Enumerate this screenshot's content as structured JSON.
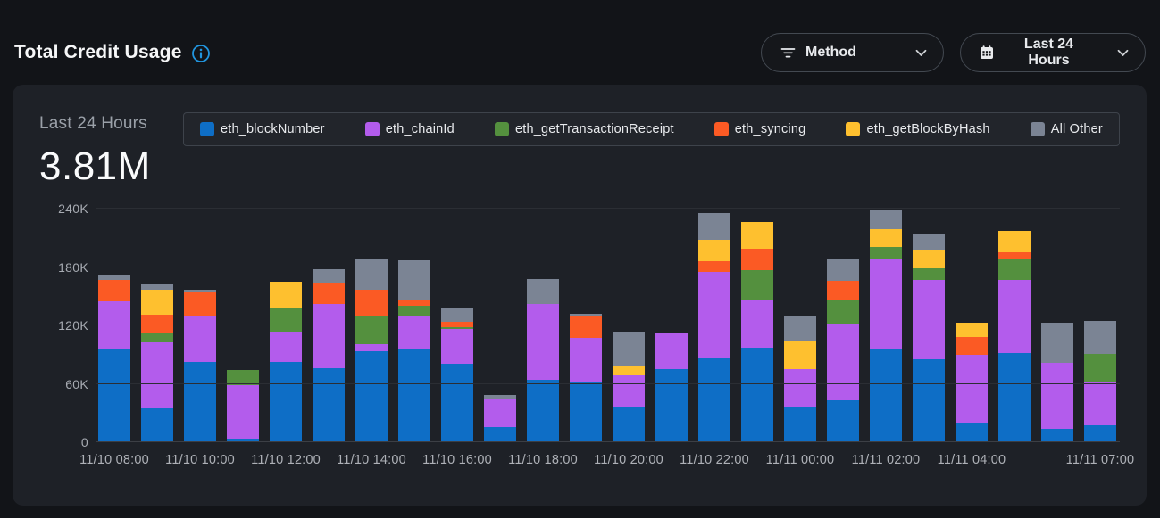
{
  "header": {
    "title": "Total Credit Usage",
    "filters": [
      {
        "label": "Method",
        "icon": "filter-icon"
      },
      {
        "label": "Last 24 Hours",
        "icon": "calendar-icon"
      }
    ]
  },
  "card": {
    "period_label": "Last 24 Hours",
    "total": "3.81M",
    "legend": [
      {
        "label": "eth_blockNumber",
        "color": "#0e6ec6"
      },
      {
        "label": "eth_chainId",
        "color": "#b35cec"
      },
      {
        "label": "eth_getTransactionReceipt",
        "color": "#54903e"
      },
      {
        "label": "eth_syncing",
        "color": "#fb5a24"
      },
      {
        "label": "eth_getBlockByHash",
        "color": "#fec02f"
      },
      {
        "label": "All Other",
        "color": "#7b8494"
      }
    ]
  },
  "colors": {
    "page_bg": "#121418",
    "card_bg": "#1e2127",
    "accent_info": "#2196e0",
    "grid": "#2b2e34",
    "baseline": "#3c3f45"
  },
  "chart_data": {
    "type": "bar",
    "stacked": true,
    "unit": "thousands of credits",
    "ylim": [
      0,
      240
    ],
    "grid": true,
    "legend_position": "top",
    "yticks": [
      {
        "label": "0",
        "value": 0
      },
      {
        "label": "60K",
        "value": 60
      },
      {
        "label": "120K",
        "value": 120
      },
      {
        "label": "180K",
        "value": 180
      },
      {
        "label": "240K",
        "value": 240
      }
    ],
    "categories": [
      "11/10 08:00",
      "11/10 09:00",
      "11/10 10:00",
      "11/10 11:00",
      "11/10 12:00",
      "11/10 13:00",
      "11/10 14:00",
      "11/10 15:00",
      "11/10 16:00",
      "11/10 17:00",
      "11/10 18:00",
      "11/10 19:00",
      "11/10 20:00",
      "11/10 21:00",
      "11/10 22:00",
      "11/10 23:00",
      "11/11 00:00",
      "11/11 01:00",
      "11/11 02:00",
      "11/11 03:00",
      "11/11 04:00",
      "11/11 05:00",
      "11/11 06:00",
      "11/11 07:00"
    ],
    "series": [
      {
        "name": "eth_blockNumber",
        "color": "#0e6ec6",
        "values": [
          96,
          35,
          82,
          4,
          82,
          76,
          93,
          96,
          81,
          16,
          64,
          61,
          37,
          75,
          86,
          97,
          36,
          43,
          95,
          85,
          20,
          92,
          14,
          17
        ]
      },
      {
        "name": "eth_chainId",
        "color": "#b35cec",
        "values": [
          49,
          68,
          48,
          55,
          32,
          66,
          8,
          34,
          35,
          28,
          78,
          46,
          32,
          38,
          89,
          50,
          39,
          79,
          94,
          82,
          70,
          75,
          68,
          45
        ]
      },
      {
        "name": "eth_getTransactionReceipt",
        "color": "#54903e",
        "values": [
          0,
          9,
          0,
          15,
          24,
          0,
          29,
          10,
          2,
          0,
          0,
          0,
          0,
          0,
          0,
          30,
          0,
          24,
          12,
          12,
          0,
          21,
          0,
          29
        ]
      },
      {
        "name": "eth_syncing",
        "color": "#fb5a24",
        "values": [
          22,
          19,
          24,
          0,
          0,
          22,
          27,
          7,
          6,
          0,
          0,
          23,
          0,
          0,
          11,
          22,
          0,
          20,
          0,
          0,
          18,
          7,
          0,
          0
        ]
      },
      {
        "name": "eth_getBlockByHash",
        "color": "#fec02f",
        "values": [
          0,
          26,
          0,
          0,
          27,
          0,
          0,
          0,
          0,
          0,
          0,
          0,
          9,
          0,
          22,
          27,
          29,
          0,
          18,
          19,
          15,
          22,
          0,
          0
        ]
      },
      {
        "name": "All Other",
        "color": "#7b8494",
        "values": [
          5,
          5,
          3,
          0,
          0,
          14,
          32,
          40,
          14,
          5,
          26,
          2,
          36,
          0,
          27,
          0,
          26,
          23,
          20,
          16,
          0,
          0,
          41,
          34
        ]
      }
    ],
    "x_axis_labels": [
      {
        "text": "11/10 08:00",
        "bar": 0
      },
      {
        "text": "11/10 10:00",
        "bar": 2
      },
      {
        "text": "11/10 12:00",
        "bar": 4
      },
      {
        "text": "11/10 14:00",
        "bar": 6
      },
      {
        "text": "11/10 16:00",
        "bar": 8
      },
      {
        "text": "11/10 18:00",
        "bar": 10
      },
      {
        "text": "11/10 20:00",
        "bar": 12
      },
      {
        "text": "11/10 22:00",
        "bar": 14
      },
      {
        "text": "11/11 00:00",
        "bar": 16
      },
      {
        "text": "11/11 02:00",
        "bar": 18
      },
      {
        "text": "11/11 04:00",
        "bar": 20
      },
      {
        "text": "11/11 07:00",
        "bar": 23
      }
    ]
  }
}
